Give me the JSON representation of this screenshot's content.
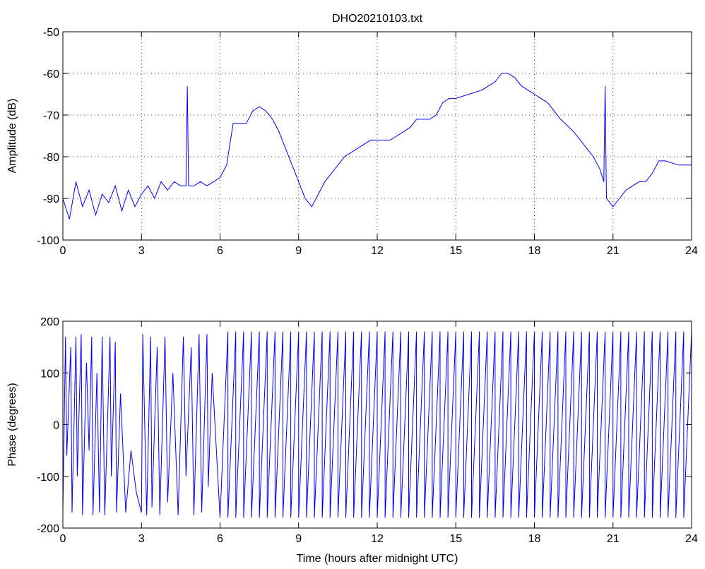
{
  "chart_data": [
    {
      "type": "line",
      "title": "DHO20210103.txt",
      "ylabel": "Amplitude (dB)",
      "color": "#0000ff",
      "grid": true,
      "xlim": [
        0,
        24
      ],
      "xticks": [
        0,
        3,
        6,
        9,
        12,
        15,
        18,
        21,
        24
      ],
      "ylim": [
        -100,
        -50
      ],
      "yticks": [
        -100,
        -90,
        -80,
        -70,
        -60,
        -50
      ],
      "x": [
        0,
        0.25,
        0.5,
        0.75,
        1,
        1.25,
        1.5,
        1.75,
        2,
        2.25,
        2.5,
        2.75,
        3,
        3.25,
        3.5,
        3.75,
        4,
        4.25,
        4.5,
        4.7,
        4.75,
        4.8,
        5,
        5.25,
        5.5,
        5.75,
        6,
        6.25,
        6.4,
        6.5,
        6.75,
        7,
        7.25,
        7.5,
        7.75,
        8,
        8.25,
        8.5,
        8.75,
        9,
        9.25,
        9.5,
        9.75,
        10,
        10.25,
        10.5,
        10.75,
        11,
        11.25,
        11.5,
        11.75,
        12,
        12.25,
        12.5,
        12.75,
        13,
        13.25,
        13.5,
        13.75,
        14,
        14.25,
        14.5,
        14.75,
        15,
        15.5,
        16,
        16.5,
        16.75,
        17,
        17.25,
        17.5,
        18,
        18.5,
        19,
        19.5,
        20,
        20.25,
        20.5,
        20.65,
        20.7,
        20.75,
        21,
        21.25,
        21.5,
        22,
        22.25,
        22.5,
        22.75,
        23,
        23.5,
        24
      ],
      "values": [
        -90,
        -95,
        -86,
        -92,
        -88,
        -94,
        -89,
        -91,
        -87,
        -93,
        -88,
        -92,
        -89,
        -87,
        -90,
        -86,
        -88,
        -86,
        -87,
        -87,
        -63,
        -87,
        -87,
        -86,
        -87,
        -86,
        -85,
        -82,
        -76,
        -72,
        -72,
        -72,
        -69,
        -68,
        -69,
        -71,
        -74,
        -78,
        -82,
        -86,
        -90,
        -92,
        -89,
        -86,
        -84,
        -82,
        -80,
        -79,
        -78,
        -77,
        -76,
        -76,
        -76,
        -76,
        -75,
        -74,
        -73,
        -71,
        -71,
        -71,
        -70,
        -67,
        -66,
        -66,
        -65,
        -64,
        -62,
        -60,
        -60,
        -61,
        -63,
        -65,
        -67,
        -71,
        -74,
        -78,
        -80,
        -83,
        -86,
        -63,
        -90,
        -92,
        -90,
        -88,
        -86,
        -86,
        -84,
        -81,
        -81,
        -82,
        -82
      ]
    },
    {
      "type": "line",
      "ylabel": "Phase (degrees)",
      "xlabel": "Time (hours after midnight UTC)",
      "color": "#0000ff",
      "grid": false,
      "xlim": [
        0,
        24
      ],
      "xticks": [
        0,
        3,
        6,
        9,
        12,
        15,
        18,
        21,
        24
      ],
      "ylim": [
        -200,
        200
      ],
      "yticks": [
        -200,
        -100,
        0,
        100,
        200
      ],
      "x": [
        0,
        0.1,
        0.15,
        0.3,
        0.35,
        0.5,
        0.55,
        0.7,
        0.75,
        0.9,
        1.0,
        1.1,
        1.15,
        1.3,
        1.4,
        1.5,
        1.6,
        1.8,
        1.85,
        2.0,
        2.05,
        2.2,
        2.4,
        2.6,
        2.8,
        3.0,
        3.05,
        3.2,
        3.35,
        3.4,
        3.6,
        3.7,
        3.9,
        4.0,
        4.2,
        4.4,
        4.6,
        4.7,
        4.9,
        5.0,
        5.2,
        5.3,
        5.5,
        5.55,
        5.7,
        6,
        6.3,
        6.3,
        6.6,
        6.6,
        6.9,
        6.9,
        7.2,
        7.2,
        7.5,
        7.5,
        7.8,
        7.8,
        8.1,
        8.1,
        8.4,
        8.4,
        8.7,
        8.7,
        9.0,
        9.0,
        9.3,
        9.3,
        9.6,
        9.6,
        9.9,
        9.9,
        10.2,
        10.2,
        10.5,
        10.5,
        10.8,
        10.8,
        11.1,
        11.1,
        11.4,
        11.4,
        11.7,
        11.7,
        12.0,
        12.0,
        12.3,
        12.3,
        12.6,
        12.6,
        12.9,
        12.9,
        13.2,
        13.2,
        13.5,
        13.5,
        13.8,
        13.8,
        14.1,
        14.1,
        14.4,
        14.4,
        14.7,
        14.7,
        15.0,
        15.0,
        15.3,
        15.3,
        15.6,
        15.6,
        15.9,
        15.9,
        16.2,
        16.2,
        16.5,
        16.5,
        16.8,
        16.8,
        17.1,
        17.1,
        17.4,
        17.4,
        17.7,
        17.7,
        18.0,
        18.0,
        18.3,
        18.3,
        18.6,
        18.6,
        18.9,
        18.9,
        19.2,
        19.2,
        19.5,
        19.5,
        19.8,
        19.8,
        20.1,
        20.1,
        20.4,
        20.4,
        20.7,
        20.7,
        21.0,
        21.0,
        21.3,
        21.3,
        21.6,
        21.6,
        21.9,
        21.9,
        22.2,
        22.2,
        22.5,
        22.5,
        22.8,
        22.8,
        23.1,
        23.1,
        23.4,
        23.4,
        23.7,
        23.7,
        24
      ],
      "values": [
        -170,
        170,
        -60,
        150,
        -170,
        170,
        -100,
        175,
        -175,
        120,
        -50,
        170,
        -175,
        100,
        -170,
        170,
        -175,
        170,
        -100,
        160,
        -170,
        60,
        -170,
        -50,
        -130,
        -170,
        175,
        -175,
        170,
        -160,
        150,
        -175,
        170,
        -150,
        100,
        -175,
        170,
        -100,
        150,
        -175,
        175,
        -170,
        175,
        -120,
        100,
        -180,
        180,
        -180,
        180,
        -180,
        180,
        -180,
        180,
        -180,
        180,
        -180,
        180,
        -180,
        180,
        -180,
        180,
        -180,
        180,
        -180,
        180,
        -180,
        180,
        -180,
        180,
        -180,
        180,
        -180,
        180,
        -180,
        180,
        -180,
        180,
        -180,
        180,
        -180,
        180,
        -180,
        180,
        -180,
        180,
        -180,
        180,
        -180,
        180,
        -180,
        180,
        -180,
        180,
        -180,
        180,
        -180,
        180,
        -180,
        180,
        -180,
        180,
        -180,
        180,
        -180,
        180,
        -180,
        180,
        -180,
        180,
        -180,
        180,
        -180,
        180,
        -180,
        180,
        -180,
        180,
        -180,
        180,
        -180,
        180,
        -180,
        180,
        -180,
        180,
        -180,
        180,
        -180,
        180,
        -180,
        180,
        -180,
        180,
        -180,
        180,
        -180,
        180,
        -180,
        180,
        -180,
        180,
        -180,
        180,
        -180,
        180,
        -180,
        180,
        -180,
        180,
        -180,
        180,
        -180,
        180,
        -180,
        180,
        -180,
        180,
        -180,
        180,
        -180,
        180,
        -180,
        180,
        -180,
        180
      ]
    }
  ]
}
